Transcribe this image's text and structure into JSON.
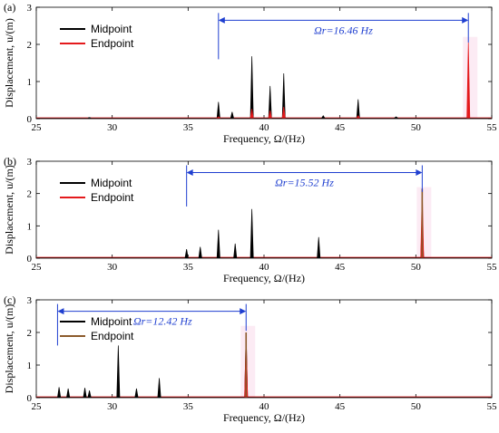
{
  "colors": {
    "midpoint": "#000000",
    "endpoint": "#e41a1c",
    "overlap": "#8b5a2b",
    "annotation": "#1f3fd0",
    "shade": "#fbe3f0"
  },
  "chart_data": [
    {
      "type": "line",
      "panel_label": "(a)",
      "xlabel": "Frequency, Ω/(Hz)",
      "ylabel": "Displacement, u/(m)",
      "xlim": [
        25,
        55
      ],
      "ylim": [
        0,
        3
      ],
      "xticks": [
        25,
        30,
        35,
        40,
        45,
        50,
        55
      ],
      "yticks": [
        0,
        1,
        2,
        3
      ],
      "legend": {
        "position": "top-left",
        "entries": [
          "Midpoint",
          "Endpoint"
        ]
      },
      "annotation": {
        "text": "Ωr=16.46 Hz",
        "from": 37.0,
        "to": 53.46,
        "y": 2.65
      },
      "series": [
        {
          "name": "Midpoint",
          "peaks": [
            [
              28.5,
              0.03
            ],
            [
              37.0,
              0.45
            ],
            [
              37.9,
              0.18
            ],
            [
              39.2,
              1.68
            ],
            [
              40.4,
              0.88
            ],
            [
              41.3,
              1.22
            ],
            [
              43.9,
              0.08
            ],
            [
              46.2,
              0.52
            ],
            [
              48.7,
              0.05
            ],
            [
              53.46,
              0.15
            ]
          ]
        },
        {
          "name": "Endpoint",
          "peaks": [
            [
              37.0,
              0.05
            ],
            [
              39.2,
              0.26
            ],
            [
              40.4,
              0.22
            ],
            [
              41.3,
              0.32
            ],
            [
              46.2,
              0.08
            ],
            [
              53.46,
              2.05
            ]
          ]
        }
      ]
    },
    {
      "type": "line",
      "panel_label": "(b)",
      "xlabel": "Frequency, Ω/(Hz)",
      "ylabel": "Displacement, u/(m)",
      "xlim": [
        25,
        55
      ],
      "ylim": [
        0,
        3
      ],
      "xticks": [
        25,
        30,
        35,
        40,
        45,
        50,
        55
      ],
      "yticks": [
        0,
        1,
        2,
        3
      ],
      "legend": {
        "position": "top-left",
        "entries": [
          "Midpoint",
          "Endpoint"
        ]
      },
      "annotation": {
        "text": "Ωr=15.52 Hz",
        "from": 34.9,
        "to": 50.42,
        "y": 2.65
      },
      "series": [
        {
          "name": "Midpoint",
          "peaks": [
            [
              34.9,
              0.28
            ],
            [
              35.8,
              0.35
            ],
            [
              37.0,
              0.88
            ],
            [
              38.1,
              0.45
            ],
            [
              39.2,
              1.52
            ],
            [
              43.6,
              0.65
            ],
            [
              50.42,
              1.25
            ]
          ]
        },
        {
          "name": "Endpoint",
          "peaks": [
            [
              50.42,
              2.15
            ]
          ]
        }
      ]
    },
    {
      "type": "line",
      "panel_label": "(c)",
      "xlabel": "Frequency, Ω/(Hz)",
      "ylabel": "Displacement, u/(m)",
      "xlim": [
        25,
        55
      ],
      "ylim": [
        0,
        3
      ],
      "xticks": [
        25,
        30,
        35,
        40,
        45,
        50,
        55
      ],
      "yticks": [
        0,
        1,
        2,
        3
      ],
      "legend": {
        "position": "top-left",
        "entries": [
          "Midpoint",
          "Endpoint"
        ]
      },
      "annotation": {
        "text": "Ωr=12.42 Hz",
        "from": 26.4,
        "to": 38.82,
        "y": 2.65
      },
      "series": [
        {
          "name": "Midpoint",
          "peaks": [
            [
              26.5,
              0.32
            ],
            [
              27.1,
              0.28
            ],
            [
              28.2,
              0.3
            ],
            [
              28.5,
              0.22
            ],
            [
              30.4,
              1.6
            ],
            [
              31.6,
              0.28
            ],
            [
              33.1,
              0.6
            ],
            [
              38.82,
              2.0
            ]
          ]
        },
        {
          "name": "Endpoint",
          "peaks": [
            [
              38.82,
              2.0
            ]
          ]
        }
      ]
    }
  ]
}
